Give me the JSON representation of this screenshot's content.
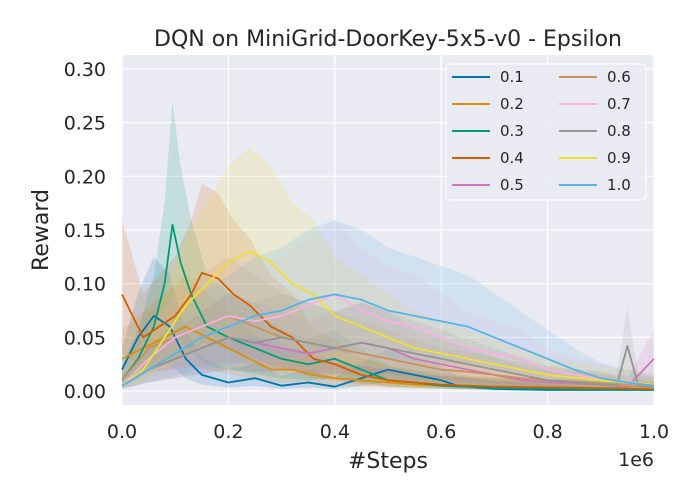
{
  "chart_data": {
    "type": "line",
    "title": "DQN on MiniGrid-DoorKey-5x5-v0 - Epsilon",
    "xlabel": "#Steps",
    "ylabel": "Reward",
    "x_offset_label": "1e6",
    "xlim": [
      0,
      1.0
    ],
    "ylim": [
      -0.013,
      0.313
    ],
    "xticks": [
      0.0,
      0.2,
      0.4,
      0.6,
      0.8,
      1.0
    ],
    "xtick_labels": [
      "0.0",
      "0.2",
      "0.4",
      "0.6",
      "0.8",
      "1.0"
    ],
    "yticks": [
      0.0,
      0.05,
      0.1,
      0.15,
      0.2,
      0.25,
      0.3
    ],
    "ytick_labels": [
      "0.00",
      "0.05",
      "0.10",
      "0.15",
      "0.20",
      "0.25",
      "0.30"
    ],
    "grid": true,
    "legend_position": "top-right",
    "series": [
      {
        "name": "0.1",
        "color": "#0173b2",
        "points": [
          [
            0.0,
            0.02
          ],
          [
            0.03,
            0.05
          ],
          [
            0.06,
            0.07
          ],
          [
            0.09,
            0.06
          ],
          [
            0.12,
            0.03
          ],
          [
            0.15,
            0.015
          ],
          [
            0.2,
            0.008
          ],
          [
            0.25,
            0.012
          ],
          [
            0.3,
            0.005
          ],
          [
            0.35,
            0.008
          ],
          [
            0.4,
            0.004
          ],
          [
            0.45,
            0.012
          ],
          [
            0.5,
            0.02
          ],
          [
            0.55,
            0.015
          ],
          [
            0.6,
            0.01
          ],
          [
            0.63,
            0.005
          ],
          [
            0.7,
            0.002
          ],
          [
            0.8,
            0.001
          ],
          [
            0.9,
            0.001
          ],
          [
            1.0,
            0.001
          ]
        ]
      },
      {
        "name": "0.2",
        "color": "#de8f05",
        "points": [
          [
            0.0,
            0.03
          ],
          [
            0.04,
            0.04
          ],
          [
            0.08,
            0.05
          ],
          [
            0.12,
            0.06
          ],
          [
            0.16,
            0.05
          ],
          [
            0.2,
            0.04
          ],
          [
            0.24,
            0.03
          ],
          [
            0.28,
            0.02
          ],
          [
            0.32,
            0.02
          ],
          [
            0.36,
            0.015
          ],
          [
            0.4,
            0.012
          ],
          [
            0.45,
            0.01
          ],
          [
            0.5,
            0.008
          ],
          [
            0.55,
            0.006
          ],
          [
            0.6,
            0.005
          ],
          [
            0.7,
            0.004
          ],
          [
            0.8,
            0.003
          ],
          [
            0.9,
            0.002
          ],
          [
            1.0,
            0.002
          ]
        ]
      },
      {
        "name": "0.3",
        "color": "#029e73",
        "points": [
          [
            0.0,
            0.01
          ],
          [
            0.03,
            0.03
          ],
          [
            0.06,
            0.06
          ],
          [
            0.08,
            0.1
          ],
          [
            0.095,
            0.155
          ],
          [
            0.11,
            0.12
          ],
          [
            0.13,
            0.09
          ],
          [
            0.16,
            0.06
          ],
          [
            0.2,
            0.05
          ],
          [
            0.25,
            0.04
          ],
          [
            0.3,
            0.03
          ],
          [
            0.35,
            0.025
          ],
          [
            0.4,
            0.03
          ],
          [
            0.45,
            0.02
          ],
          [
            0.5,
            0.01
          ],
          [
            0.55,
            0.008
          ],
          [
            0.6,
            0.005
          ],
          [
            0.7,
            0.003
          ],
          [
            0.8,
            0.002
          ],
          [
            1.0,
            0.001
          ]
        ]
      },
      {
        "name": "0.4",
        "color": "#d55e00",
        "points": [
          [
            0.0,
            0.09
          ],
          [
            0.02,
            0.07
          ],
          [
            0.04,
            0.05
          ],
          [
            0.07,
            0.06
          ],
          [
            0.1,
            0.07
          ],
          [
            0.13,
            0.09
          ],
          [
            0.15,
            0.11
          ],
          [
            0.18,
            0.105
          ],
          [
            0.21,
            0.09
          ],
          [
            0.24,
            0.08
          ],
          [
            0.28,
            0.06
          ],
          [
            0.32,
            0.05
          ],
          [
            0.36,
            0.03
          ],
          [
            0.4,
            0.025
          ],
          [
            0.45,
            0.015
          ],
          [
            0.5,
            0.01
          ],
          [
            0.6,
            0.006
          ],
          [
            0.7,
            0.004
          ],
          [
            0.85,
            0.003
          ],
          [
            1.0,
            0.002
          ]
        ]
      },
      {
        "name": "0.5",
        "color": "#cc78bc",
        "points": [
          [
            0.0,
            0.005
          ],
          [
            0.05,
            0.02
          ],
          [
            0.1,
            0.03
          ],
          [
            0.15,
            0.04
          ],
          [
            0.2,
            0.05
          ],
          [
            0.25,
            0.045
          ],
          [
            0.3,
            0.04
          ],
          [
            0.35,
            0.035
          ],
          [
            0.4,
            0.04
          ],
          [
            0.45,
            0.045
          ],
          [
            0.5,
            0.04
          ],
          [
            0.55,
            0.03
          ],
          [
            0.6,
            0.025
          ],
          [
            0.65,
            0.02
          ],
          [
            0.7,
            0.015
          ],
          [
            0.75,
            0.01
          ],
          [
            0.8,
            0.008
          ],
          [
            0.9,
            0.006
          ],
          [
            0.95,
            0.004
          ],
          [
            1.0,
            0.03
          ]
        ]
      },
      {
        "name": "0.6",
        "color": "#ca9161",
        "points": [
          [
            0.0,
            0.01
          ],
          [
            0.05,
            0.04
          ],
          [
            0.1,
            0.05
          ],
          [
            0.15,
            0.06
          ],
          [
            0.2,
            0.07
          ],
          [
            0.25,
            0.06
          ],
          [
            0.3,
            0.05
          ],
          [
            0.35,
            0.045
          ],
          [
            0.4,
            0.04
          ],
          [
            0.45,
            0.035
          ],
          [
            0.5,
            0.03
          ],
          [
            0.55,
            0.025
          ],
          [
            0.6,
            0.02
          ],
          [
            0.65,
            0.018
          ],
          [
            0.7,
            0.015
          ],
          [
            0.75,
            0.012
          ],
          [
            0.8,
            0.01
          ],
          [
            0.88,
            0.008
          ],
          [
            0.95,
            0.005
          ],
          [
            1.0,
            0.003
          ]
        ]
      },
      {
        "name": "0.7",
        "color": "#fbafe4",
        "points": [
          [
            0.0,
            0.005
          ],
          [
            0.05,
            0.03
          ],
          [
            0.1,
            0.05
          ],
          [
            0.15,
            0.06
          ],
          [
            0.2,
            0.07
          ],
          [
            0.25,
            0.065
          ],
          [
            0.3,
            0.07
          ],
          [
            0.35,
            0.08
          ],
          [
            0.4,
            0.09
          ],
          [
            0.45,
            0.075
          ],
          [
            0.5,
            0.065
          ],
          [
            0.55,
            0.06
          ],
          [
            0.6,
            0.05
          ],
          [
            0.65,
            0.04
          ],
          [
            0.7,
            0.035
          ],
          [
            0.75,
            0.03
          ],
          [
            0.8,
            0.02
          ],
          [
            0.85,
            0.015
          ],
          [
            0.92,
            0.01
          ],
          [
            1.0,
            0.006
          ]
        ]
      },
      {
        "name": "0.8",
        "color": "#949494",
        "points": [
          [
            0.0,
            0.005
          ],
          [
            0.05,
            0.02
          ],
          [
            0.1,
            0.03
          ],
          [
            0.15,
            0.04
          ],
          [
            0.2,
            0.05
          ],
          [
            0.25,
            0.045
          ],
          [
            0.3,
            0.05
          ],
          [
            0.35,
            0.045
          ],
          [
            0.4,
            0.04
          ],
          [
            0.45,
            0.045
          ],
          [
            0.5,
            0.04
          ],
          [
            0.55,
            0.035
          ],
          [
            0.6,
            0.03
          ],
          [
            0.65,
            0.025
          ],
          [
            0.7,
            0.02
          ],
          [
            0.75,
            0.015
          ],
          [
            0.8,
            0.01
          ],
          [
            0.85,
            0.008
          ],
          [
            0.93,
            0.005
          ],
          [
            0.95,
            0.042
          ],
          [
            0.97,
            0.006
          ],
          [
            1.0,
            0.004
          ]
        ]
      },
      {
        "name": "0.9",
        "color": "#ece133",
        "points": [
          [
            0.0,
            0.005
          ],
          [
            0.04,
            0.02
          ],
          [
            0.08,
            0.05
          ],
          [
            0.12,
            0.08
          ],
          [
            0.16,
            0.1
          ],
          [
            0.2,
            0.12
          ],
          [
            0.24,
            0.13
          ],
          [
            0.28,
            0.12
          ],
          [
            0.32,
            0.1
          ],
          [
            0.36,
            0.09
          ],
          [
            0.4,
            0.07
          ],
          [
            0.45,
            0.06
          ],
          [
            0.5,
            0.05
          ],
          [
            0.55,
            0.04
          ],
          [
            0.6,
            0.035
          ],
          [
            0.65,
            0.03
          ],
          [
            0.7,
            0.025
          ],
          [
            0.75,
            0.02
          ],
          [
            0.8,
            0.015
          ],
          [
            0.9,
            0.01
          ],
          [
            1.0,
            0.006
          ]
        ]
      },
      {
        "name": "1.0",
        "color": "#56b4e9",
        "points": [
          [
            0.0,
            0.005
          ],
          [
            0.05,
            0.02
          ],
          [
            0.1,
            0.035
          ],
          [
            0.15,
            0.05
          ],
          [
            0.2,
            0.06
          ],
          [
            0.25,
            0.07
          ],
          [
            0.3,
            0.075
          ],
          [
            0.35,
            0.085
          ],
          [
            0.4,
            0.09
          ],
          [
            0.45,
            0.085
          ],
          [
            0.5,
            0.075
          ],
          [
            0.55,
            0.07
          ],
          [
            0.6,
            0.065
          ],
          [
            0.65,
            0.06
          ],
          [
            0.7,
            0.05
          ],
          [
            0.75,
            0.04
          ],
          [
            0.8,
            0.03
          ],
          [
            0.85,
            0.02
          ],
          [
            0.9,
            0.012
          ],
          [
            0.95,
            0.008
          ],
          [
            1.0,
            0.005
          ]
        ]
      }
    ]
  }
}
